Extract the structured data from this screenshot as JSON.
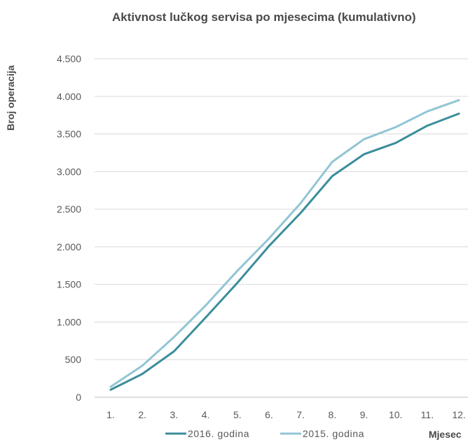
{
  "chart_data": {
    "type": "line",
    "title": "Aktivnost lučkog servisa po mjesecima (kumulativno)",
    "xlabel": "Mjesec",
    "ylabel": "Broj operacija",
    "categories": [
      "1.",
      "2.",
      "3.",
      "4.",
      "5.",
      "6.",
      "7.",
      "8.",
      "9.",
      "10.",
      "11.",
      "12."
    ],
    "ylim": [
      0,
      4500
    ],
    "yticks": [
      0,
      500,
      1000,
      1500,
      2000,
      2500,
      3000,
      3500,
      4000,
      4500
    ],
    "ytick_labels": [
      "0",
      "500",
      "1.000",
      "1.500",
      "2.000",
      "2.500",
      "3.000",
      "3.500",
      "4.000",
      "4.500"
    ],
    "grid": true,
    "legend_position": "bottom",
    "series": [
      {
        "name": "2016. godina",
        "color": "#3a8d9b",
        "values": [
          100,
          310,
          610,
          1060,
          1520,
          2010,
          2450,
          2940,
          3230,
          3380,
          3610,
          3770
        ]
      },
      {
        "name": "2015. godina",
        "color": "#92c5d4",
        "values": [
          140,
          420,
          800,
          1220,
          1680,
          2110,
          2580,
          3130,
          3430,
          3590,
          3800,
          3950
        ]
      }
    ]
  }
}
